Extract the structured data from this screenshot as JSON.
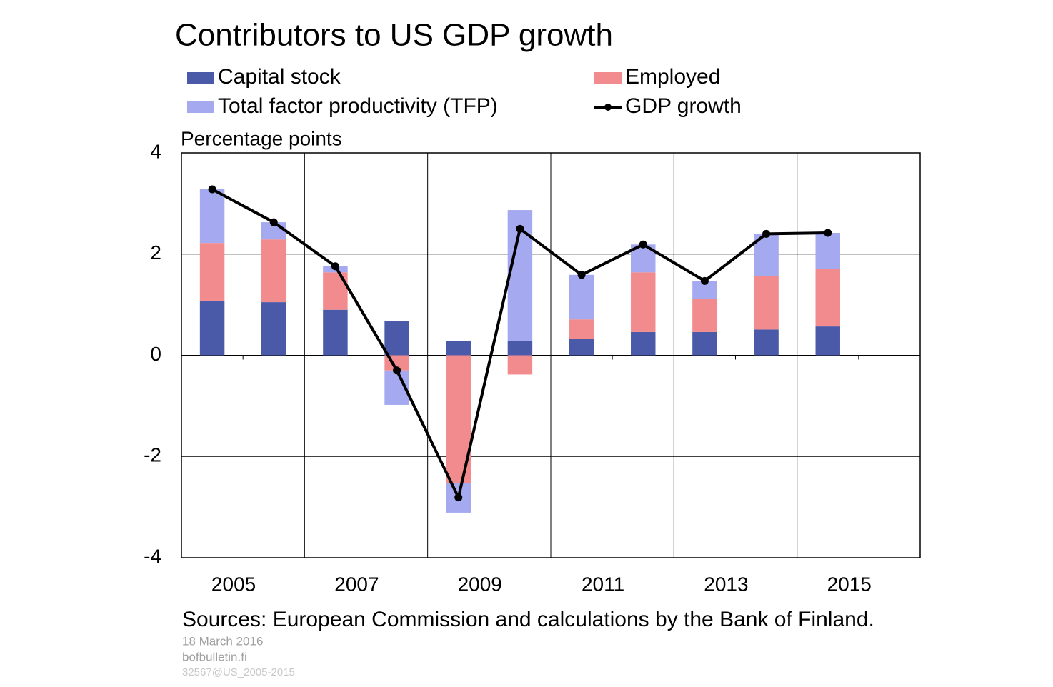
{
  "chart_data": {
    "type": "stacked_bar_line",
    "title": "Contributors to US GDP growth",
    "y_label": "Percentage points",
    "source": "Sources: European Commission and calculations by the Bank of Finland.",
    "footer": [
      "18 March 2016",
      "bofbulletin.fi",
      "32567@US_2005-2015"
    ],
    "categories": [
      "2005",
      null,
      "2007",
      null,
      "2009",
      null,
      "2011",
      null,
      "2013",
      null,
      "2015",
      null
    ],
    "series": [
      {
        "name": "Capital stock",
        "color": "#4a5aa8",
        "kind": "bar",
        "values": [
          1.08,
          1.05,
          0.9,
          0.67,
          0.28,
          0.28,
          0.33,
          0.46,
          0.46,
          0.51,
          0.57,
          null
        ]
      },
      {
        "name": "Employed",
        "color": "#f28b8d",
        "kind": "bar",
        "values": [
          1.14,
          1.24,
          0.74,
          -0.3,
          -2.53,
          -0.38,
          0.38,
          1.18,
          0.66,
          1.05,
          1.14,
          null
        ]
      },
      {
        "name": "Total factor productivity (TFP)",
        "color": "#a4a9f0",
        "kind": "bar",
        "values": [
          1.06,
          0.34,
          0.12,
          -0.68,
          -0.58,
          2.59,
          0.88,
          0.55,
          0.35,
          0.84,
          0.71,
          null
        ]
      },
      {
        "name": "GDP growth",
        "color": "#000000",
        "kind": "line",
        "values": [
          3.28,
          2.63,
          1.76,
          -0.3,
          -2.81,
          2.5,
          1.59,
          2.19,
          1.47,
          2.4,
          2.42,
          null
        ]
      }
    ],
    "ylim": [
      -4,
      4
    ],
    "yticks": [
      -4,
      -2,
      0,
      2,
      4
    ],
    "grid": true
  }
}
